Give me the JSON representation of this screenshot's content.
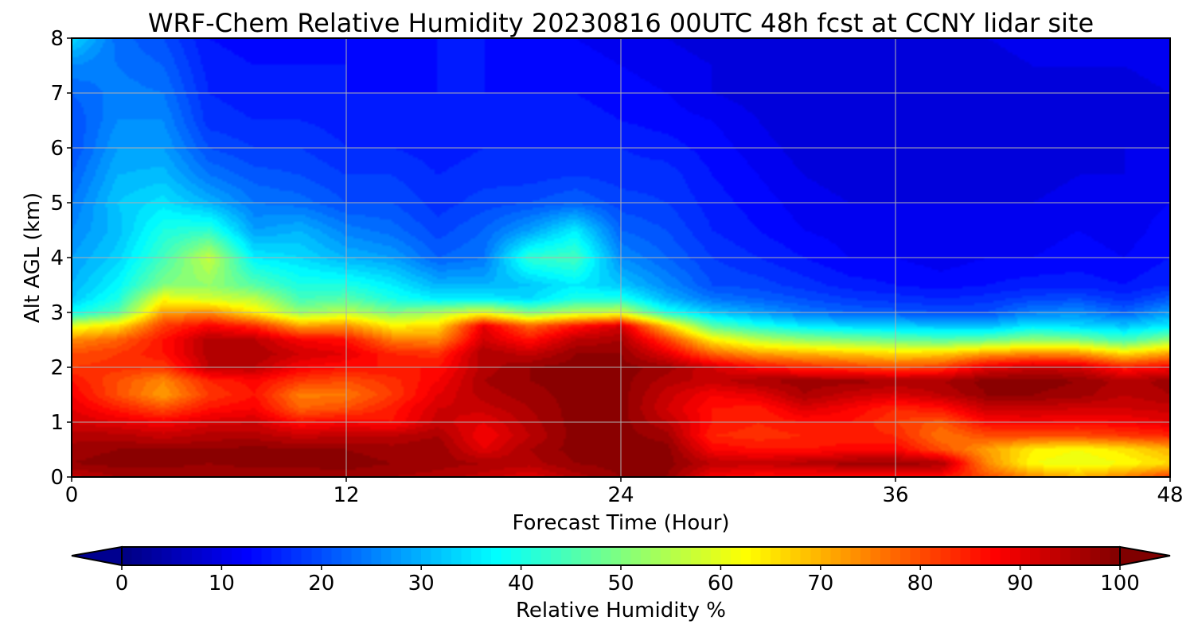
{
  "chart_data": {
    "type": "heatmap",
    "title": "WRF-Chem Relative Humidity 20230816 00UTC 48h fcst at CCNY lidar site",
    "xlabel": "Forecast Time (Hour)",
    "ylabel": "Alt AGL (km)",
    "xlim": [
      0,
      48
    ],
    "ylim": [
      0,
      8
    ],
    "x_ticks": [
      0,
      12,
      24,
      36,
      48
    ],
    "y_ticks": [
      0,
      1,
      2,
      3,
      4,
      5,
      6,
      7,
      8
    ],
    "grid": true,
    "colorbar": {
      "label": "Relative Humidity %",
      "orientation": "horizontal",
      "placement": "bottom",
      "extend": "both",
      "colormap": "jet",
      "ticks": [
        0,
        10,
        20,
        30,
        40,
        50,
        60,
        70,
        80,
        90,
        100
      ],
      "range": [
        0,
        100
      ]
    },
    "x": [
      0,
      2,
      4,
      6,
      8,
      10,
      12,
      14,
      16,
      18,
      20,
      22,
      24,
      26,
      28,
      30,
      32,
      34,
      36,
      38,
      40,
      42,
      44,
      46,
      48
    ],
    "y": [
      0,
      0.25,
      0.5,
      0.75,
      1,
      1.25,
      1.5,
      1.75,
      2,
      2.25,
      2.5,
      2.75,
      3,
      3.25,
      3.5,
      4,
      4.5,
      5,
      5.5,
      6,
      6.5,
      7,
      7.5,
      8
    ],
    "z": [
      [
        93,
        96,
        96,
        96,
        96,
        96,
        97,
        96,
        95,
        93,
        90,
        95,
        98,
        98,
        88,
        86,
        86,
        85,
        86,
        86,
        80,
        74,
        70,
        75,
        82
      ],
      [
        98,
        99,
        99,
        98,
        99,
        99,
        99,
        98,
        97,
        96,
        95,
        98,
        99,
        99,
        94,
        93,
        95,
        97,
        97,
        96,
        74,
        62,
        60,
        62,
        66
      ],
      [
        97,
        98,
        98,
        98,
        99,
        98,
        98,
        97,
        98,
        90,
        96,
        99,
        99,
        99,
        88,
        86,
        86,
        87,
        88,
        80,
        72,
        64,
        62,
        65,
        70
      ],
      [
        95,
        95,
        93,
        95,
        95,
        93,
        94,
        94,
        96,
        88,
        94,
        99,
        99,
        97,
        84,
        83,
        84,
        85,
        84,
        76,
        80,
        80,
        80,
        82,
        84
      ],
      [
        92,
        90,
        88,
        91,
        92,
        86,
        88,
        86,
        93,
        90,
        95,
        99,
        99,
        94,
        86,
        84,
        86,
        86,
        82,
        79,
        87,
        88,
        87,
        88,
        90
      ],
      [
        90,
        85,
        80,
        86,
        88,
        78,
        80,
        85,
        92,
        93,
        96,
        99,
        99,
        92,
        86,
        85,
        91,
        88,
        84,
        86,
        93,
        93,
        92,
        92,
        93
      ],
      [
        88,
        80,
        72,
        82,
        86,
        75,
        76,
        82,
        90,
        95,
        97,
        99,
        99,
        93,
        88,
        90,
        96,
        93,
        91,
        94,
        98,
        98,
        97,
        94,
        96
      ],
      [
        86,
        80,
        74,
        84,
        87,
        82,
        80,
        83,
        88,
        96,
        98,
        99,
        99,
        95,
        93,
        96,
        97,
        97,
        96,
        96,
        99,
        99,
        98,
        95,
        97
      ],
      [
        82,
        83,
        82,
        94,
        94,
        88,
        86,
        86,
        86,
        95,
        98,
        99,
        99,
        97,
        92,
        87,
        84,
        82,
        80,
        82,
        90,
        93,
        92,
        85,
        88
      ],
      [
        80,
        82,
        86,
        95,
        96,
        92,
        90,
        84,
        83,
        96,
        93,
        98,
        98,
        90,
        78,
        72,
        70,
        68,
        66,
        67,
        72,
        74,
        73,
        66,
        72
      ],
      [
        74,
        78,
        86,
        95,
        94,
        88,
        86,
        76,
        74,
        92,
        86,
        94,
        96,
        82,
        64,
        56,
        52,
        50,
        48,
        46,
        48,
        52,
        50,
        44,
        52
      ],
      [
        60,
        66,
        82,
        88,
        84,
        72,
        74,
        64,
        66,
        90,
        78,
        86,
        92,
        68,
        46,
        40,
        36,
        34,
        33,
        32,
        31,
        36,
        34,
        32,
        36
      ],
      [
        38,
        46,
        72,
        74,
        64,
        52,
        56,
        50,
        54,
        60,
        50,
        56,
        58,
        40,
        32,
        28,
        24,
        22,
        21,
        20,
        20,
        25,
        26,
        22,
        28
      ],
      [
        32,
        40,
        62,
        58,
        56,
        44,
        46,
        40,
        36,
        36,
        34,
        40,
        40,
        30,
        24,
        22,
        20,
        18,
        17,
        16,
        17,
        19,
        20,
        17,
        21
      ],
      [
        30,
        37,
        50,
        52,
        46,
        40,
        40,
        36,
        30,
        30,
        32,
        36,
        32,
        26,
        20,
        19,
        17,
        15,
        14,
        13,
        14,
        15,
        15,
        14,
        16
      ],
      [
        28,
        33,
        44,
        57,
        36,
        34,
        30,
        28,
        22,
        24,
        42,
        44,
        26,
        22,
        18,
        16,
        14,
        12,
        12,
        11,
        12,
        12,
        13,
        12,
        14
      ],
      [
        26,
        31,
        40,
        42,
        28,
        30,
        25,
        23,
        19,
        22,
        28,
        36,
        22,
        20,
        16,
        14,
        12,
        11,
        11,
        10,
        10,
        11,
        12,
        11,
        13
      ],
      [
        24,
        32,
        35,
        30,
        24,
        23,
        20,
        20,
        17,
        19,
        20,
        22,
        19,
        18,
        15,
        13,
        11,
        10,
        10,
        10,
        10,
        10,
        11,
        11,
        12
      ],
      [
        22,
        30,
        31,
        24,
        21,
        20,
        18,
        18,
        16,
        17,
        17,
        18,
        17,
        17,
        14,
        12,
        10,
        9,
        9,
        9,
        9,
        9,
        10,
        10,
        11
      ],
      [
        20,
        28,
        28,
        20,
        18,
        18,
        16,
        16,
        15,
        16,
        16,
        16,
        16,
        15,
        13,
        11,
        9,
        8,
        8,
        9,
        9,
        9,
        9,
        10,
        10
      ],
      [
        20,
        26,
        26,
        17,
        16,
        16,
        15,
        15,
        15,
        15,
        15,
        15,
        14,
        13,
        12,
        10,
        8,
        8,
        8,
        9,
        9,
        9,
        9,
        9,
        10
      ],
      [
        22,
        25,
        24,
        16,
        15,
        15,
        14,
        14,
        14,
        14,
        14,
        14,
        13,
        12,
        10,
        9,
        8,
        8,
        8,
        9,
        9,
        9,
        9,
        9,
        10
      ],
      [
        26,
        24,
        22,
        15,
        14,
        14,
        14,
        13,
        14,
        14,
        13,
        13,
        12,
        11,
        10,
        9,
        8,
        8,
        9,
        9,
        9,
        10,
        10,
        10,
        11
      ],
      [
        34,
        23,
        20,
        14,
        13,
        13,
        13,
        13,
        14,
        14,
        13,
        12,
        11,
        10,
        9,
        9,
        9,
        9,
        10,
        10,
        10,
        11,
        11,
        12,
        12
      ]
    ]
  }
}
